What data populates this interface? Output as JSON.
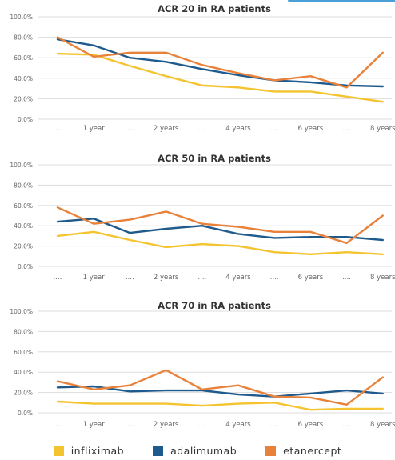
{
  "colors": {
    "infliximab": "#f4c430",
    "adalimumab": "#1f5a8c",
    "etanercept": "#e8823a",
    "grid": "#dddddd",
    "axis_text": "#666666"
  },
  "legend": [
    {
      "name": "infliximab",
      "color": "#f4c430"
    },
    {
      "name": "adalimumab",
      "color": "#1f5a8c"
    },
    {
      "name": "etanercept",
      "color": "#e8823a"
    }
  ],
  "chart_data": [
    {
      "type": "line",
      "title": "ACR 20 in RA patients",
      "categories": [
        "....",
        "1 year",
        "....",
        "2 years",
        "....",
        "4 years",
        "....",
        "6 years",
        "....",
        "8 years"
      ],
      "yticks": [
        "0.0%",
        "20.0%",
        "40.0%",
        "60.0%",
        "80.0%",
        "100.0%"
      ],
      "ylim": [
        0,
        100
      ],
      "grid": true,
      "series": [
        {
          "name": "infliximab",
          "values": [
            64,
            63,
            52,
            42,
            33,
            31,
            27,
            27,
            22,
            17
          ]
        },
        {
          "name": "adalimumab",
          "values": [
            78,
            72,
            60,
            56,
            49,
            43,
            38,
            36,
            33,
            32
          ]
        },
        {
          "name": "etanercept",
          "values": [
            80,
            61,
            65,
            65,
            53,
            45,
            38,
            42,
            31,
            65
          ]
        }
      ]
    },
    {
      "type": "line",
      "title": "ACR 50 in RA patients",
      "categories": [
        "....",
        "1 year",
        "....",
        "2 years",
        "....",
        "4 years",
        "....",
        "6 years",
        "....",
        "8 years"
      ],
      "yticks": [
        "0.0%",
        "20.0%",
        "40.0%",
        "60.0%",
        "80.0%",
        "100.0%"
      ],
      "ylim": [
        0,
        100
      ],
      "grid": true,
      "series": [
        {
          "name": "infliximab",
          "values": [
            30,
            34,
            26,
            19,
            22,
            20,
            14,
            12,
            14,
            12
          ]
        },
        {
          "name": "adalimumab",
          "values": [
            44,
            47,
            33,
            37,
            40,
            32,
            28,
            29,
            29,
            26
          ]
        },
        {
          "name": "etanercept",
          "values": [
            58,
            42,
            46,
            54,
            42,
            39,
            34,
            34,
            23,
            50
          ]
        }
      ]
    },
    {
      "type": "line",
      "title": "ACR 70 in RA patients",
      "categories": [
        "....",
        "1 year",
        "....",
        "2 years",
        "....",
        "4 years",
        "....",
        "6 years",
        "....",
        "8 years"
      ],
      "yticks": [
        "0.0%",
        "20.0%",
        "40.0%",
        "60.0%",
        "80.0%",
        "100.0%"
      ],
      "ylim": [
        0,
        100
      ],
      "grid": true,
      "series": [
        {
          "name": "infliximab",
          "values": [
            11,
            9,
            9,
            9,
            7,
            9,
            10,
            3,
            4,
            4
          ]
        },
        {
          "name": "adalimumab",
          "values": [
            25,
            26,
            21,
            22,
            22,
            18,
            16,
            19,
            22,
            19
          ]
        },
        {
          "name": "etanercept",
          "values": [
            31,
            23,
            27,
            42,
            23,
            27,
            16,
            15,
            8,
            35
          ]
        }
      ]
    }
  ]
}
